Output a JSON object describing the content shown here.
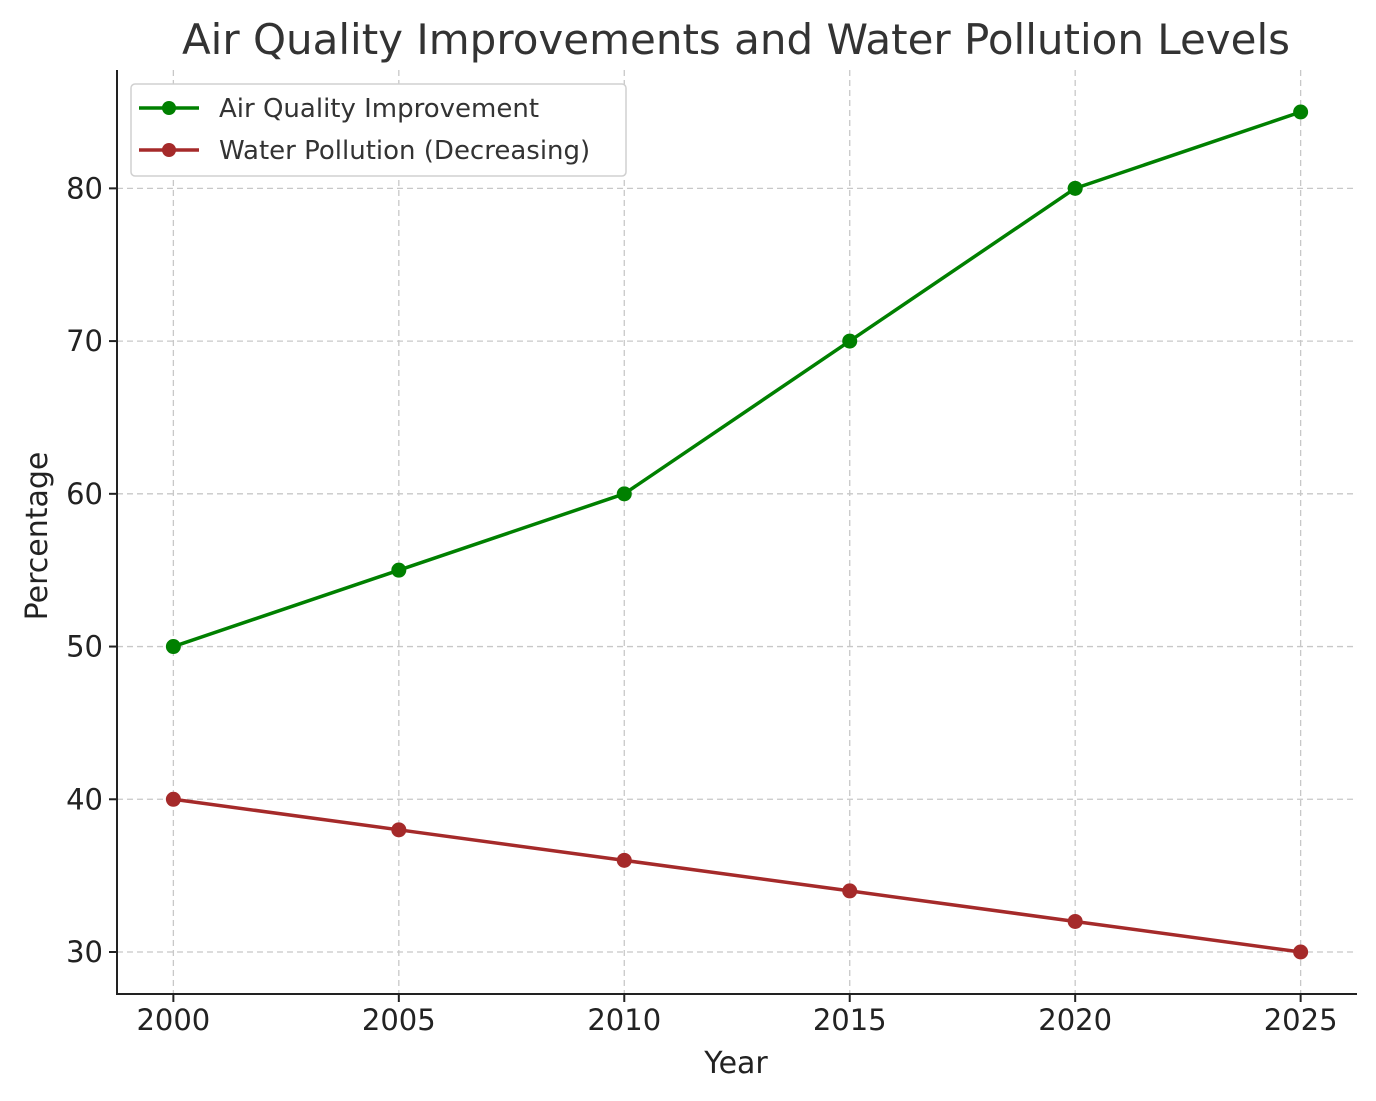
{
  "chart_data": {
    "type": "line",
    "title": "Air Quality Improvements and Water Pollution Levels",
    "xlabel": "Year",
    "ylabel": "Percentage",
    "x": [
      2000,
      2005,
      2010,
      2015,
      2020,
      2025
    ],
    "xticks": [
      "2000",
      "2005",
      "2010",
      "2015",
      "2020",
      "2025"
    ],
    "yticks": [
      "30",
      "40",
      "50",
      "60",
      "70",
      "80"
    ],
    "xlim": [
      1998.75,
      2026.25
    ],
    "ylim": [
      27.25,
      87.75
    ],
    "grid": true,
    "legend_position": "top-left",
    "series": [
      {
        "name": "Air Quality Improvement",
        "color": "#008000",
        "values": [
          50,
          55,
          60,
          70,
          80,
          85
        ]
      },
      {
        "name": "Water Pollution (Decreasing)",
        "color": "#a52a2a",
        "values": [
          40,
          38,
          36,
          34,
          32,
          30
        ]
      }
    ]
  }
}
